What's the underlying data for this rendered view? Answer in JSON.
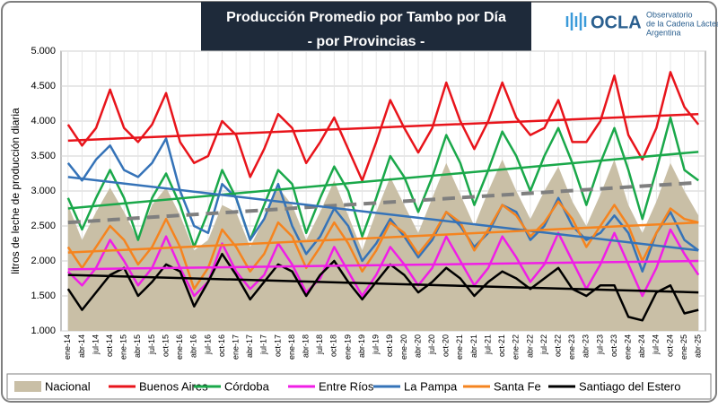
{
  "chart_data": {
    "type": "line",
    "title": "Producción Promedio por Tambo por Día",
    "subtitle": "- por Provincias -",
    "y_label": "litros de leche de producción diaria",
    "logo": {
      "mark": "OCLA",
      "lines": [
        "Observatorio",
        "de la Cadena Láctea",
        "Argentina"
      ]
    },
    "ylim": [
      1000,
      5000
    ],
    "yticks": [
      {
        "value": 1000,
        "label": "1.000"
      },
      {
        "value": 1500,
        "label": "1.500"
      },
      {
        "value": 2000,
        "label": "2.000"
      },
      {
        "value": 2500,
        "label": "2.500"
      },
      {
        "value": 3000,
        "label": "3.000"
      },
      {
        "value": 3500,
        "label": "3.500"
      },
      {
        "value": 4000,
        "label": "4.000"
      },
      {
        "value": 4500,
        "label": "4.500"
      },
      {
        "value": 5000,
        "label": "5.000"
      }
    ],
    "grid": true,
    "categories": [
      "ene-14",
      "abr-14",
      "jul-14",
      "oct-14",
      "ene-15",
      "abr-15",
      "jul-15",
      "oct-15",
      "ene-16",
      "abr-16",
      "jul-16",
      "oct-16",
      "ene-17",
      "abr-17",
      "jul-17",
      "oct-17",
      "ene-18",
      "abr-18",
      "jul-18",
      "oct-18",
      "ene-19",
      "abr-19",
      "jul-19",
      "oct-19",
      "ene-20",
      "abr-20",
      "jul-20",
      "oct-20",
      "ene-21",
      "abr-21",
      "jul-21",
      "oct-21",
      "ene-22",
      "abr-22",
      "jul-22",
      "oct-22",
      "ene-23",
      "abr-23",
      "jul-23",
      "oct-23",
      "ene-24",
      "abr-24",
      "jul-24",
      "oct-24",
      "ene-25",
      "abr-25"
    ],
    "series": [
      {
        "name": "Nacional",
        "color": "#c9bfa6",
        "fill": true,
        "trend": [
          2550,
          3120
        ],
        "trend_color": "#7f7f7f",
        "trend_dashed": true,
        "values": [
          2800,
          2300,
          2700,
          3050,
          2700,
          2300,
          2800,
          3050,
          2650,
          2150,
          2300,
          2800,
          2700,
          2200,
          2600,
          3050,
          2800,
          2300,
          2700,
          3150,
          2650,
          2150,
          2700,
          3200,
          2800,
          2400,
          2900,
          3400,
          2950,
          2500,
          3000,
          3450,
          3000,
          2600,
          3000,
          3350,
          2850,
          2500,
          2950,
          3450,
          2800,
          2400,
          2850,
          3400,
          3000,
          2650
        ]
      },
      {
        "name": "Buenos Aires",
        "color": "#e8141b",
        "trend": [
          3720,
          4100
        ],
        "values": [
          3950,
          3650,
          3900,
          4450,
          3900,
          3700,
          3950,
          4400,
          3700,
          3400,
          3500,
          4000,
          3800,
          3200,
          3600,
          4100,
          3900,
          3400,
          3700,
          4050,
          3600,
          3150,
          3700,
          4300,
          3900,
          3550,
          3900,
          4550,
          4000,
          3600,
          4000,
          4550,
          4050,
          3800,
          3900,
          4300,
          3700,
          3700,
          4000,
          4650,
          3800,
          3450,
          3900,
          4700,
          4200,
          3950
        ]
      },
      {
        "name": "Córdoba",
        "color": "#1aa84a",
        "trend": [
          2750,
          3560
        ],
        "values": [
          2900,
          2450,
          2900,
          3300,
          2900,
          2300,
          2900,
          3250,
          2800,
          2200,
          2700,
          3300,
          2900,
          2300,
          2800,
          3300,
          3100,
          2400,
          2900,
          3350,
          3000,
          2350,
          2900,
          3500,
          3200,
          2700,
          3200,
          3800,
          3400,
          2800,
          3300,
          3850,
          3500,
          3000,
          3500,
          3900,
          3400,
          2800,
          3400,
          3900,
          3300,
          2600,
          3300,
          4050,
          3300,
          3150
        ]
      },
      {
        "name": "Entre Ríos",
        "color": "#f01ee6",
        "trend": [
          1880,
          2000
        ],
        "values": [
          1850,
          1650,
          1900,
          2300,
          2000,
          1650,
          1900,
          2350,
          1900,
          1500,
          1700,
          2250,
          1850,
          1600,
          1800,
          2250,
          1950,
          1550,
          1750,
          2200,
          1850,
          1500,
          1800,
          2200,
          1950,
          1650,
          1900,
          2350,
          2000,
          1650,
          1900,
          2350,
          2050,
          1700,
          1950,
          2400,
          2000,
          1600,
          1950,
          2400,
          1950,
          1500,
          1900,
          2450,
          2100,
          1800
        ]
      },
      {
        "name": "La Pampa",
        "color": "#3573b8",
        "trend": [
          3200,
          2150
        ],
        "values": [
          3400,
          3150,
          3450,
          3650,
          3300,
          3200,
          3400,
          3750,
          3000,
          2500,
          2400,
          3100,
          2900,
          2300,
          2600,
          3100,
          2500,
          2100,
          2350,
          2750,
          2500,
          2000,
          2250,
          2600,
          2350,
          2050,
          2300,
          2700,
          2500,
          2200,
          2400,
          2800,
          2700,
          2300,
          2500,
          2900,
          2500,
          2300,
          2400,
          2650,
          2400,
          1850,
          2400,
          2700,
          2300,
          2150
        ]
      },
      {
        "name": "Santa Fe",
        "color": "#f5841f",
        "trend": [
          2120,
          2550
        ],
        "values": [
          2200,
          1900,
          2200,
          2500,
          2300,
          1950,
          2200,
          2600,
          2200,
          1600,
          1900,
          2450,
          2200,
          1850,
          2100,
          2550,
          2350,
          1900,
          2200,
          2550,
          2250,
          1850,
          2150,
          2550,
          2400,
          2100,
          2350,
          2700,
          2550,
          2150,
          2450,
          2800,
          2650,
          2350,
          2550,
          2850,
          2600,
          2200,
          2500,
          2800,
          2500,
          2000,
          2400,
          2750,
          2600,
          2550
        ]
      },
      {
        "name": "Santiago del Estero",
        "color": "#000000",
        "trend": [
          1800,
          1550
        ],
        "values": [
          1600,
          1300,
          1550,
          1800,
          1900,
          1500,
          1700,
          1950,
          1850,
          1350,
          1700,
          2100,
          1800,
          1450,
          1700,
          1950,
          1850,
          1500,
          1800,
          2000,
          1700,
          1450,
          1700,
          1950,
          1800,
          1550,
          1700,
          1900,
          1750,
          1500,
          1700,
          1850,
          1750,
          1600,
          1750,
          1900,
          1600,
          1500,
          1650,
          1650,
          1200,
          1150,
          1550,
          1650,
          1250,
          1300
        ]
      }
    ]
  }
}
